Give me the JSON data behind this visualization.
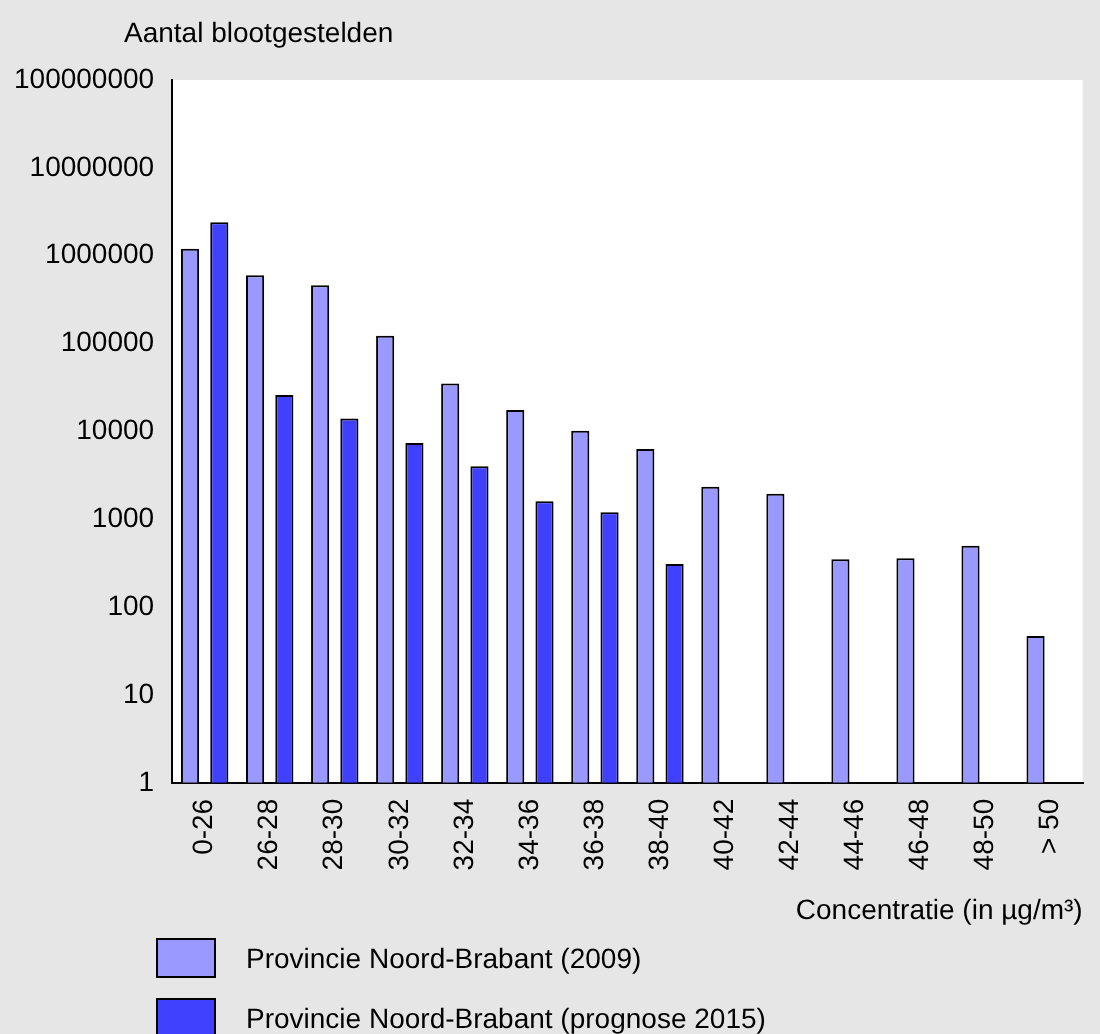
{
  "chart_data": {
    "type": "bar",
    "ylabel": "Aantal blootgestelden",
    "xlabel": "Concentratie (in µg/m³)",
    "categories": [
      "0-26",
      "26-28",
      "28-30",
      "30-32",
      "32-34",
      "34-36",
      "36-38",
      "38-40",
      "40-42",
      "42-44",
      "44-46",
      "46-48",
      "48-50",
      "> 50"
    ],
    "series": [
      {
        "name": "Provincie Noord-Brabant (2009)",
        "color": "#9999ff",
        "values": [
          1200000,
          600000,
          460000,
          123000,
          35000,
          17500,
          10200,
          6300,
          2350,
          1950,
          350,
          360,
          500,
          47
        ]
      },
      {
        "name": "Provincie Noord-Brabant (prognose 2015)",
        "color": "#4040ff",
        "values": [
          2400000,
          26000,
          14000,
          7400,
          4000,
          1600,
          1200,
          310,
          1,
          1,
          1,
          1,
          1,
          1
        ]
      }
    ],
    "log": true,
    "ylim": [
      1,
      100000000
    ],
    "yticks": [
      1,
      10,
      100,
      1000,
      10000,
      100000,
      1000000,
      10000000,
      100000000
    ],
    "grid": false,
    "legend": "bottom left"
  }
}
